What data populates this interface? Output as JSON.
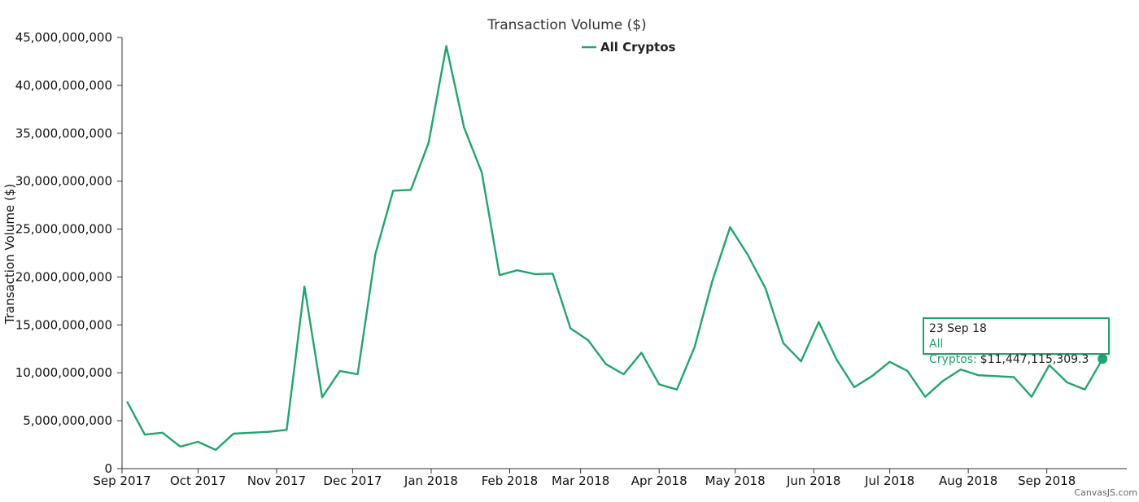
{
  "chart_data": {
    "type": "line",
    "title": "Transaction Volume ($)",
    "xlabel": "",
    "ylabel": "Transaction Volume ($)",
    "ylim": [
      0,
      45000000000
    ],
    "xlim": [
      "2017-09-01",
      "2018-09-30"
    ],
    "grid": false,
    "legend": "top",
    "y_ticks": [
      0,
      5000000000,
      10000000000,
      15000000000,
      20000000000,
      25000000000,
      30000000000,
      35000000000,
      40000000000,
      45000000000
    ],
    "y_tick_labels": [
      "0",
      "5,000,000,000",
      "10,000,000,000",
      "15,000,000,000",
      "20,000,000,000",
      "25,000,000,000",
      "30,000,000,000",
      "35,000,000,000",
      "40,000,000,000",
      "45,000,000,000"
    ],
    "x_ticks": [
      "2017-09-01",
      "2017-10-01",
      "2017-11-01",
      "2017-12-01",
      "2018-01-01",
      "2018-02-01",
      "2018-03-01",
      "2018-04-01",
      "2018-05-01",
      "2018-06-01",
      "2018-07-01",
      "2018-08-01",
      "2018-09-01"
    ],
    "x_tick_labels": [
      "Sep 2017",
      "Oct 2017",
      "Nov 2017",
      "Dec 2017",
      "Jan 2018",
      "Feb 2018",
      "Mar 2018",
      "Apr 2018",
      "May 2018",
      "Jun 2018",
      "Jul 2018",
      "Aug 2018",
      "Sep 2018"
    ],
    "series": [
      {
        "name": "All Cryptos",
        "color": "#23a46f",
        "x": [
          "2017-09-03",
          "2017-09-10",
          "2017-09-17",
          "2017-09-24",
          "2017-10-01",
          "2017-10-08",
          "2017-10-15",
          "2017-10-22",
          "2017-10-29",
          "2017-11-05",
          "2017-11-12",
          "2017-11-19",
          "2017-11-26",
          "2017-12-03",
          "2017-12-10",
          "2017-12-17",
          "2017-12-24",
          "2017-12-31",
          "2018-01-07",
          "2018-01-14",
          "2018-01-21",
          "2018-01-28",
          "2018-02-04",
          "2018-02-11",
          "2018-02-18",
          "2018-02-25",
          "2018-03-04",
          "2018-03-11",
          "2018-03-18",
          "2018-03-25",
          "2018-04-01",
          "2018-04-08",
          "2018-04-15",
          "2018-04-22",
          "2018-04-29",
          "2018-05-06",
          "2018-05-13",
          "2018-05-20",
          "2018-05-27",
          "2018-06-03",
          "2018-06-10",
          "2018-06-17",
          "2018-06-24",
          "2018-07-01",
          "2018-07-08",
          "2018-07-15",
          "2018-07-22",
          "2018-07-29",
          "2018-08-05",
          "2018-08-12",
          "2018-08-19",
          "2018-08-26",
          "2018-09-02",
          "2018-09-09",
          "2018-09-16",
          "2018-09-23"
        ],
        "values": [
          7000000000,
          3550000000,
          3750000000,
          2300000000,
          2800000000,
          1950000000,
          3650000000,
          3750000000,
          3850000000,
          4050000000,
          19000000000,
          7450000000,
          10200000000,
          9850000000,
          22400000000,
          29000000000,
          29100000000,
          34000000000,
          44100000000,
          35600000000,
          30900000000,
          20200000000,
          20700000000,
          20300000000,
          20350000000,
          14650000000,
          13400000000,
          10900000000,
          9850000000,
          12100000000,
          8800000000,
          8250000000,
          12700000000,
          19600000000,
          25200000000,
          22300000000,
          18800000000,
          13100000000,
          11200000000,
          15300000000,
          11400000000,
          8500000000,
          9650000000,
          11150000000,
          10200000000,
          7500000000,
          9150000000,
          10350000000,
          9750000000,
          9650000000,
          9550000000,
          7500000000,
          10800000000,
          9000000000,
          8250000000,
          11447115309.3
        ]
      }
    ],
    "highlight": {
      "date_label": "23 Sep 18",
      "series_label": "All Cryptos:",
      "value_label": "$11,447,115,309.3",
      "index": 55
    },
    "credit": "CanvasJS.com"
  }
}
